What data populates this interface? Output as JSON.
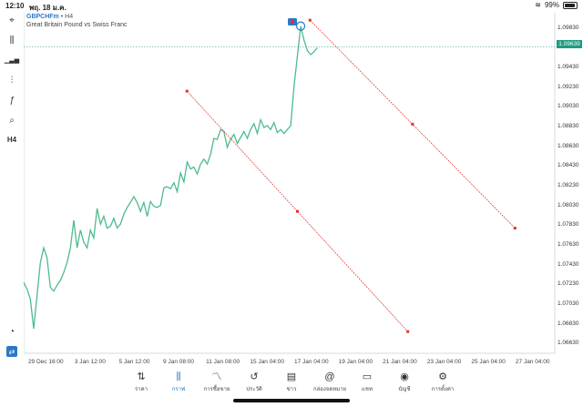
{
  "status_bar": {
    "time": "12:10",
    "date": "พฤ. 18 ม.ค.",
    "battery": "99%"
  },
  "chart": {
    "symbol": "GBPCHFm",
    "timeframe": "H4",
    "description": "Great Britain Pound vs Swiss Franc",
    "current_price": "1.09639",
    "colors": {
      "line": "#4dbb8d",
      "trendline": "#e03030",
      "price_badge": "#1e9c7f",
      "accent": "#2b78c6"
    }
  },
  "toolbar": {
    "items": [
      {
        "icon": "crosshair-icon",
        "glyph": "⌖"
      },
      {
        "icon": "candles-icon",
        "glyph": "⫼"
      },
      {
        "icon": "indicators-icon",
        "glyph": "▁▃▅"
      },
      {
        "icon": "settings-sliders-icon",
        "glyph": "⫶"
      },
      {
        "icon": "function-icon",
        "glyph": "ƒ"
      },
      {
        "icon": "objects-icon",
        "glyph": "⌕"
      },
      {
        "icon": "timeframe-label",
        "glyph": "H4"
      }
    ],
    "bottom": [
      {
        "icon": "trade-signal-icon",
        "glyph": "◔"
      },
      {
        "icon": "one-click-trade-icon",
        "glyph": "⇄"
      }
    ]
  },
  "chart_data": {
    "type": "line",
    "x_ticks": [
      "29 Dec 16:00",
      "3 Jan 12:00",
      "5 Jan 12:00",
      "9 Jan 08:00",
      "11 Jan 08:00",
      "15 Jan 04:00",
      "17 Jan 04:00",
      "19 Jan 04:00",
      "21 Jan 04:00",
      "23 Jan 04:00",
      "25 Jan 04:00",
      "27 Jan 04:00"
    ],
    "y_ticks": [
      "1.09830",
      "1.09430",
      "1.09230",
      "1.09030",
      "1.08830",
      "1.08630",
      "1.08430",
      "1.08230",
      "1.08030",
      "1.07830",
      "1.07630",
      "1.07430",
      "1.07230",
      "1.07030",
      "1.06830",
      "1.06630"
    ],
    "ylim": [
      1.0653,
      1.0993
    ],
    "values": [
      1.0725,
      1.0718,
      1.0708,
      1.0678,
      1.0712,
      1.0745,
      1.076,
      1.075,
      1.072,
      1.0716,
      1.0722,
      1.0727,
      1.0735,
      1.0745,
      1.076,
      1.0788,
      1.076,
      1.0778,
      1.0766,
      1.076,
      1.0778,
      1.077,
      1.08,
      1.0784,
      1.0792,
      1.078,
      1.0782,
      1.079,
      1.078,
      1.0784,
      1.0794,
      1.0801,
      1.0806,
      1.0812,
      1.0806,
      1.0797,
      1.0806,
      1.0792,
      1.0807,
      1.0802,
      1.0801,
      1.0803,
      1.0821,
      1.0822,
      1.082,
      1.0826,
      1.0817,
      1.0836,
      1.0827,
      1.0847,
      1.084,
      1.0842,
      1.0835,
      1.0845,
      1.085,
      1.0845,
      1.0855,
      1.0871,
      1.087,
      1.088,
      1.0878,
      1.0862,
      1.087,
      1.0875,
      1.0866,
      1.0872,
      1.0878,
      1.0871,
      1.088,
      1.0886,
      1.0876,
      1.089,
      1.0882,
      1.0884,
      1.088,
      1.0887,
      1.0877,
      1.088,
      1.0876,
      1.088,
      1.0884,
      1.0924,
      1.0954,
      1.0985,
      1.0971,
      1.096,
      1.0956,
      1.0959,
      1.0963
    ],
    "trendlines": [
      {
        "x_from": 0.3075,
        "y_from": 1.0919,
        "x_to": 0.7233,
        "y_to": 1.0675
      },
      {
        "x_from": 0.5391,
        "y_from": 1.0991,
        "x_to": 0.9251,
        "y_to": 1.078
      }
    ],
    "last_price_line": 1.09639
  },
  "tabs": [
    {
      "label": "ราคา",
      "icon": "quotes-icon",
      "glyph": "⇅"
    },
    {
      "label": "กราฟ",
      "icon": "chart-icon",
      "glyph": "⫼",
      "active": true
    },
    {
      "label": "การซื้อขาย",
      "icon": "trade-icon",
      "glyph": "〽"
    },
    {
      "label": "ประวัติ",
      "icon": "history-icon",
      "glyph": "↺"
    },
    {
      "label": "ข่าว",
      "icon": "news-icon",
      "glyph": "▤"
    },
    {
      "label": "กล่องจดหมาย",
      "icon": "mailbox-icon",
      "glyph": "@"
    },
    {
      "label": "แชท",
      "icon": "chat-icon",
      "glyph": "▭"
    },
    {
      "label": "บัญชี",
      "icon": "account-icon",
      "glyph": "◉"
    },
    {
      "label": "การตั้งค่า",
      "icon": "settings-icon",
      "glyph": "⚙"
    }
  ]
}
